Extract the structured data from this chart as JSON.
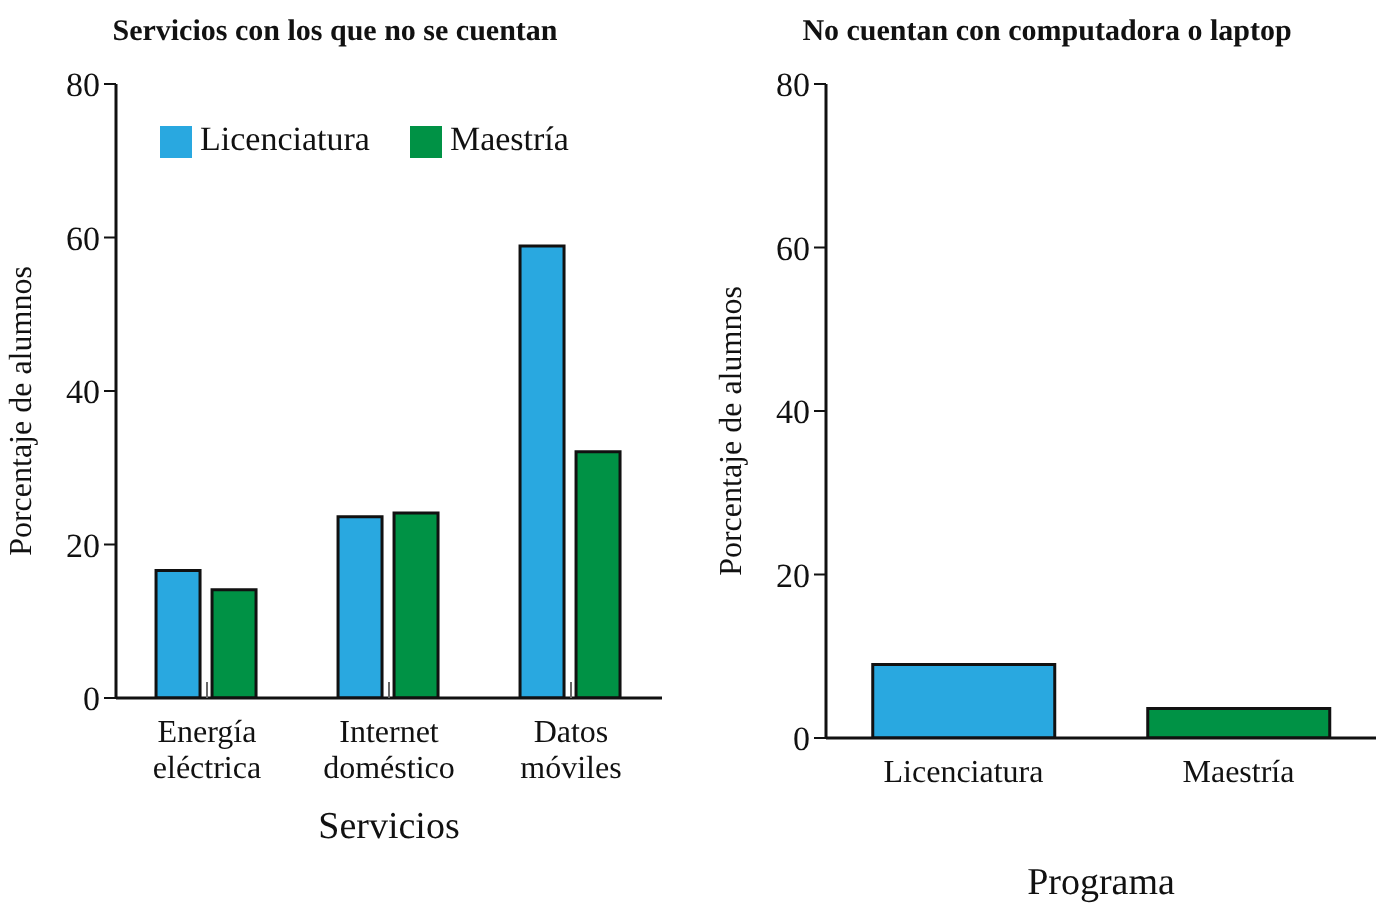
{
  "chart_data": [
    {
      "type": "bar",
      "title": "Servicios con los que no se cuentan",
      "xlabel": "Servicios",
      "ylabel": "Porcentaje de alumnos",
      "categories": [
        "Energía eléctrica",
        "Internet doméstico",
        "Datos móviles"
      ],
      "series": [
        {
          "name": "Licenciatura",
          "color": "#29a8e0",
          "values": [
            16.6,
            23.6,
            58.9
          ]
        },
        {
          "name": "Maestría",
          "color": "#009245",
          "values": [
            14.1,
            24.1,
            32.1
          ]
        }
      ],
      "ylim": [
        0,
        80
      ],
      "yticks": [
        0,
        20,
        40,
        60,
        80
      ],
      "grid": false,
      "legend": "top left"
    },
    {
      "type": "bar",
      "title": "No cuentan con computadora o laptop",
      "xlabel": "Programa",
      "ylabel": "Porcentaje de alumnos",
      "categories": [
        "Licenciatura",
        "Maestría"
      ],
      "values": [
        9.0,
        3.6
      ],
      "colors": [
        "#29a8e0",
        "#009245"
      ],
      "ylim": [
        0,
        80
      ],
      "yticks": [
        0,
        20,
        40,
        60,
        80
      ],
      "grid": false,
      "legend": false
    }
  ]
}
